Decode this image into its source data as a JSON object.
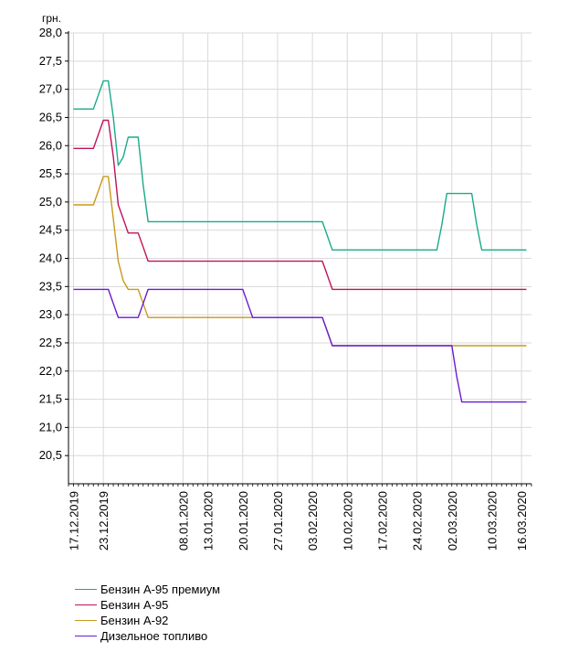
{
  "chart_data": {
    "type": "line",
    "ylabel": "грн.",
    "ylim": [
      20.0,
      28.0
    ],
    "yticks": [
      20.5,
      21.0,
      21.5,
      22.0,
      22.5,
      23.0,
      23.5,
      24.0,
      24.5,
      25.0,
      25.5,
      26.0,
      26.5,
      27.0,
      27.5,
      28.0
    ],
    "ytick_labels": [
      "20,5",
      "21,0",
      "21,5",
      "22,0",
      "22,5",
      "23,0",
      "23,5",
      "24,0",
      "24,5",
      "25,0",
      "25,5",
      "26,0",
      "26,5",
      "27,0",
      "27,5",
      "28,0"
    ],
    "xlim": [
      "2019-12-16",
      "2020-03-18"
    ],
    "xticks": [
      "2019-12-17",
      "2019-12-23",
      "2020-01-08",
      "2020-01-13",
      "2020-01-20",
      "2020-01-27",
      "2020-02-03",
      "2020-02-10",
      "2020-02-17",
      "2020-02-24",
      "2020-03-02",
      "2020-03-10",
      "2020-03-16"
    ],
    "xtick_labels": [
      "17.12.2019",
      "23.12.2019",
      "08.01.2020",
      "13.01.2020",
      "20.01.2020",
      "27.01.2020",
      "03.02.2020",
      "10.02.2020",
      "17.02.2020",
      "24.02.2020",
      "02.03.2020",
      "10.03.2020",
      "16.03.2020"
    ],
    "grid": true,
    "legend_position": "bottom-left",
    "series": [
      {
        "name": "Бензин А-95 премиум",
        "color": "#1aaa8a",
        "points": [
          [
            "2019-12-17",
            26.65
          ],
          [
            "2019-12-21",
            26.65
          ],
          [
            "2019-12-23",
            27.15
          ],
          [
            "2019-12-24",
            27.15
          ],
          [
            "2019-12-25",
            26.5
          ],
          [
            "2019-12-26",
            25.65
          ],
          [
            "2019-12-27",
            25.8
          ],
          [
            "2019-12-28",
            26.15
          ],
          [
            "2019-12-30",
            26.15
          ],
          [
            "2019-12-31",
            25.3
          ],
          [
            "2020-01-01",
            24.65
          ],
          [
            "2020-02-05",
            24.65
          ],
          [
            "2020-02-06",
            24.4
          ],
          [
            "2020-02-07",
            24.15
          ],
          [
            "2020-02-28",
            24.15
          ],
          [
            "2020-02-29",
            24.6
          ],
          [
            "2020-03-01",
            25.15
          ],
          [
            "2020-03-06",
            25.15
          ],
          [
            "2020-03-07",
            24.6
          ],
          [
            "2020-03-08",
            24.15
          ],
          [
            "2020-03-17",
            24.15
          ]
        ]
      },
      {
        "name": "Бензин А-95",
        "color": "#c0125a",
        "points": [
          [
            "2019-12-17",
            25.95
          ],
          [
            "2019-12-21",
            25.95
          ],
          [
            "2019-12-23",
            26.45
          ],
          [
            "2019-12-24",
            26.45
          ],
          [
            "2019-12-25",
            25.8
          ],
          [
            "2019-12-26",
            24.95
          ],
          [
            "2019-12-27",
            24.7
          ],
          [
            "2019-12-28",
            24.45
          ],
          [
            "2019-12-30",
            24.45
          ],
          [
            "2019-12-31",
            24.2
          ],
          [
            "2020-01-01",
            23.95
          ],
          [
            "2020-02-05",
            23.95
          ],
          [
            "2020-02-06",
            23.7
          ],
          [
            "2020-02-07",
            23.45
          ],
          [
            "2020-03-17",
            23.45
          ]
        ]
      },
      {
        "name": "Бензин А-92",
        "color": "#c89a1a",
        "points": [
          [
            "2019-12-17",
            24.95
          ],
          [
            "2019-12-21",
            24.95
          ],
          [
            "2019-12-23",
            25.45
          ],
          [
            "2019-12-24",
            25.45
          ],
          [
            "2019-12-25",
            24.7
          ],
          [
            "2019-12-26",
            23.95
          ],
          [
            "2019-12-27",
            23.6
          ],
          [
            "2019-12-28",
            23.45
          ],
          [
            "2019-12-30",
            23.45
          ],
          [
            "2019-12-31",
            23.2
          ],
          [
            "2020-01-01",
            22.95
          ],
          [
            "2020-01-21",
            22.95
          ],
          [
            "2020-02-05",
            22.95
          ],
          [
            "2020-02-06",
            22.7
          ],
          [
            "2020-02-07",
            22.45
          ],
          [
            "2020-03-17",
            22.45
          ]
        ]
      },
      {
        "name": "Дизельное топливо",
        "color": "#6a1ad0",
        "points": [
          [
            "2019-12-17",
            23.45
          ],
          [
            "2019-12-24",
            23.45
          ],
          [
            "2019-12-26",
            22.95
          ],
          [
            "2019-12-30",
            22.95
          ],
          [
            "2019-12-31",
            23.2
          ],
          [
            "2020-01-01",
            23.45
          ],
          [
            "2020-01-20",
            23.45
          ],
          [
            "2020-01-21",
            23.2
          ],
          [
            "2020-01-22",
            22.95
          ],
          [
            "2020-02-05",
            22.95
          ],
          [
            "2020-02-06",
            22.7
          ],
          [
            "2020-02-07",
            22.45
          ],
          [
            "2020-03-02",
            22.45
          ],
          [
            "2020-03-03",
            21.9
          ],
          [
            "2020-03-04",
            21.45
          ],
          [
            "2020-03-17",
            21.45
          ]
        ]
      }
    ]
  }
}
